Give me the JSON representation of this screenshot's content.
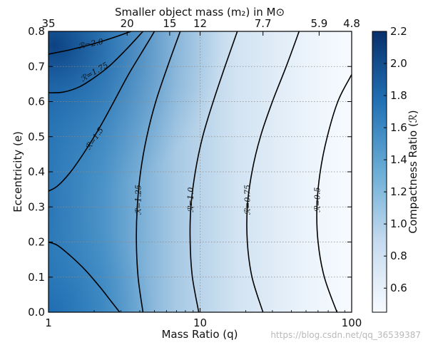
{
  "chart_data": {
    "type": "heatmap",
    "title": "Smaller object mass (m₂) in M⊙",
    "xlabel": "Mass Ratio (q)",
    "ylabel": "Eccentricity (e)",
    "colorbar_label": "Compactness Ratio (ℛ)",
    "x_scale": "log",
    "xlim": [
      1,
      100
    ],
    "ylim": [
      0.0,
      0.8
    ],
    "colorbar_range": [
      0.45,
      2.2
    ],
    "colormap": [
      "#f7fbff",
      "#c6dbef",
      "#6baed6",
      "#2171b5",
      "#08306b"
    ],
    "grid": true,
    "x_ticks": [
      {
        "value": 1,
        "label": "1"
      },
      {
        "value": 10,
        "label": "10"
      },
      {
        "value": 100,
        "label": "100"
      }
    ],
    "y_ticks": [
      {
        "value": 0.0,
        "label": "0.0"
      },
      {
        "value": 0.1,
        "label": "0.1"
      },
      {
        "value": 0.2,
        "label": "0.2"
      },
      {
        "value": 0.3,
        "label": "0.3"
      },
      {
        "value": 0.4,
        "label": "0.4"
      },
      {
        "value": 0.5,
        "label": "0.5"
      },
      {
        "value": 0.6,
        "label": "0.6"
      },
      {
        "value": 0.7,
        "label": "0.7"
      },
      {
        "value": 0.8,
        "label": "0.8"
      }
    ],
    "top_ticks": [
      {
        "q": 1,
        "label": "35"
      },
      {
        "q": 3.3,
        "label": "20"
      },
      {
        "q": 6.3,
        "label": "15"
      },
      {
        "q": 10,
        "label": "12"
      },
      {
        "q": 26,
        "label": "7.7"
      },
      {
        "q": 61,
        "label": "5.9"
      },
      {
        "q": 100,
        "label": "4.8"
      }
    ],
    "colorbar_ticks": [
      "0.6",
      "0.8",
      "1.0",
      "1.2",
      "1.4",
      "1.6",
      "1.8",
      "2.0",
      "2.2"
    ],
    "contours": [
      {
        "label": "ℛ=2.0",
        "level": 2.0,
        "points": [
          [
            1.0,
            0.735
          ],
          [
            1.4,
            0.748
          ],
          [
            2.0,
            0.765
          ],
          [
            2.8,
            0.785
          ],
          [
            3.5,
            0.8
          ]
        ]
      },
      {
        "label": "ℛ=1.75",
        "level": 1.75,
        "points": [
          [
            1.0,
            0.625
          ],
          [
            1.25,
            0.627
          ],
          [
            1.6,
            0.642
          ],
          [
            2.0,
            0.668
          ],
          [
            2.5,
            0.7
          ],
          [
            3.2,
            0.745
          ],
          [
            4.2,
            0.8
          ]
        ]
      },
      {
        "label": "ℛ=1.5",
        "level": 1.5,
        "points": [
          [
            1.0,
            0.345
          ],
          [
            1.15,
            0.36
          ],
          [
            1.4,
            0.4
          ],
          [
            1.75,
            0.46
          ],
          [
            2.2,
            0.53
          ],
          [
            2.7,
            0.6
          ],
          [
            3.4,
            0.68
          ],
          [
            4.4,
            0.76
          ],
          [
            5.0,
            0.8
          ]
        ]
      },
      {
        "label": "ℛ=1.25",
        "level": 1.25,
        "points": [
          [
            4.2,
            0.0
          ],
          [
            3.9,
            0.1
          ],
          [
            3.8,
            0.2
          ],
          [
            3.85,
            0.3
          ],
          [
            4.05,
            0.4
          ],
          [
            4.45,
            0.5
          ],
          [
            5.1,
            0.6
          ],
          [
            6.1,
            0.7
          ],
          [
            7.4,
            0.8
          ]
        ]
      },
      {
        "label": "ℛ=1.0",
        "level": 1.0,
        "points": [
          [
            9.8,
            0.0
          ],
          [
            8.9,
            0.1
          ],
          [
            8.6,
            0.2
          ],
          [
            8.7,
            0.3
          ],
          [
            9.3,
            0.4
          ],
          [
            10.4,
            0.5
          ],
          [
            12.2,
            0.6
          ],
          [
            14.6,
            0.7
          ],
          [
            17.6,
            0.8
          ]
        ]
      },
      {
        "label": "ℛ=0.75",
        "level": 0.75,
        "points": [
          [
            26.0,
            0.0
          ],
          [
            22.0,
            0.1
          ],
          [
            20.5,
            0.2
          ],
          [
            20.5,
            0.3
          ],
          [
            22.0,
            0.4
          ],
          [
            25.0,
            0.5
          ],
          [
            30.0,
            0.6
          ],
          [
            37.0,
            0.7
          ],
          [
            45.0,
            0.8
          ]
        ]
      },
      {
        "label": "ℛ=0.5",
        "level": 0.5,
        "points": [
          [
            80.0,
            0.0
          ],
          [
            66.0,
            0.1
          ],
          [
            60.0,
            0.2
          ],
          [
            59.0,
            0.3
          ],
          [
            62.0,
            0.4
          ],
          [
            69.0,
            0.5
          ],
          [
            81.0,
            0.6
          ],
          [
            98.0,
            0.67
          ],
          [
            100.0,
            0.675
          ]
        ]
      },
      {
        "label": "",
        "level": 1.5,
        "points": [
          [
            1.0,
            0.2
          ],
          [
            1.15,
            0.19
          ],
          [
            1.4,
            0.16
          ],
          [
            1.75,
            0.12
          ],
          [
            2.2,
            0.07
          ],
          [
            2.6,
            0.03
          ],
          [
            2.95,
            0.0
          ]
        ]
      }
    ],
    "contour_labels": [
      {
        "text": "ℛ=2.0",
        "q": 1.9,
        "e": 0.765,
        "angle": -12
      },
      {
        "text": "ℛ=1.75",
        "q": 2.0,
        "e": 0.685,
        "angle": -30
      },
      {
        "text": "ℛ=1.5",
        "q": 2.0,
        "e": 0.495,
        "angle": -55
      },
      {
        "text": "ℛ=1.25",
        "q": 3.9,
        "e": 0.32,
        "angle": -90
      },
      {
        "text": "ℛ=1.0",
        "q": 8.65,
        "e": 0.32,
        "angle": -90
      },
      {
        "text": "ℛ=0.75",
        "q": 20.5,
        "e": 0.32,
        "angle": -90
      },
      {
        "text": "ℛ=0.5",
        "q": 59.0,
        "e": 0.32,
        "angle": -90
      }
    ]
  },
  "watermark": "https://blog.csdn.net/qq_36539387"
}
